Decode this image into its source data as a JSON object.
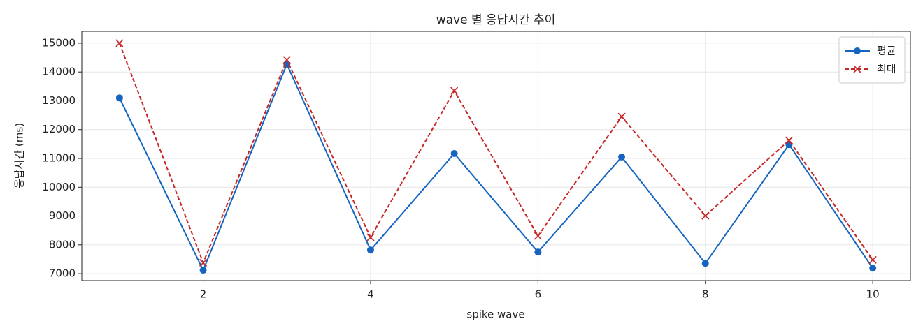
{
  "chart_data": {
    "type": "line",
    "title": "wave 별 응답시간 추이",
    "x_label": "spike wave",
    "y_label": "응답시간 (ms)",
    "x": [
      1,
      2,
      3,
      4,
      5,
      6,
      7,
      8,
      9,
      10
    ],
    "series": [
      {
        "name": "평균",
        "color": "#1565c0",
        "marker": "circle",
        "dash": false,
        "values": [
          13100,
          7120,
          14270,
          7820,
          11170,
          7750,
          11050,
          7360,
          11480,
          7190
        ]
      },
      {
        "name": "최대",
        "color": "#c62828",
        "marker": "x",
        "dash": true,
        "values": [
          15000,
          7380,
          14420,
          8260,
          13350,
          8310,
          12450,
          9010,
          11630,
          7480
        ]
      }
    ],
    "xlim": [
      0.55,
      10.45
    ],
    "ylim": [
      6760,
      15410
    ],
    "xticks": [
      2,
      4,
      6,
      8,
      10
    ],
    "yticks": [
      7000,
      8000,
      9000,
      10000,
      11000,
      12000,
      13000,
      14000,
      15000
    ],
    "grid": true,
    "legend": "upper right"
  }
}
